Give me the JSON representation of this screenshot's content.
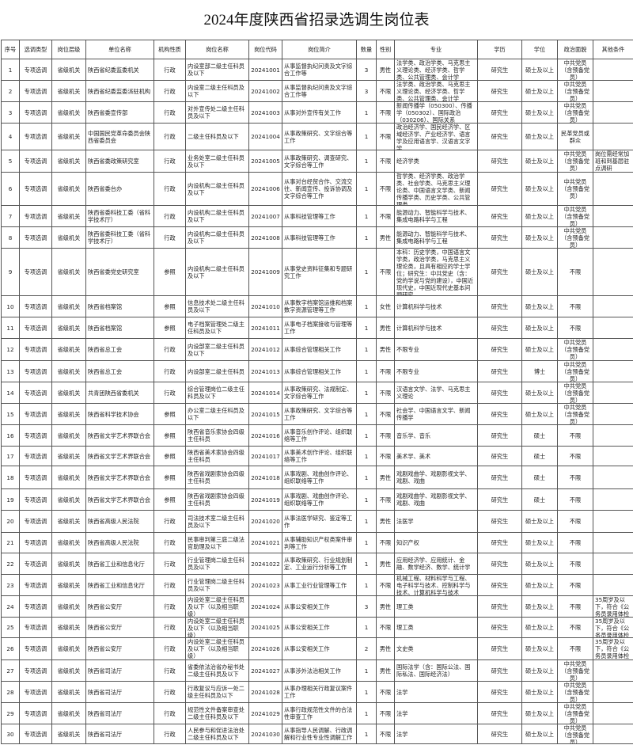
{
  "title": "2024年度陕西省招录选调生岗位表",
  "headers": [
    "序号",
    "选调类型",
    "岗位层级",
    "单位名称",
    "机构性质",
    "岗位名称",
    "岗位代码",
    "岗位简介",
    "数量",
    "性别",
    "专业",
    "学历",
    "学位",
    "政治面貌",
    "其他条件"
  ],
  "rows": [
    [
      "1",
      "专项选调",
      "省级机关",
      "陕西省纪委监委机关",
      "行政",
      "内设室部二级主任科员及以下",
      "20241001",
      "从事监督执纪问责及文字综合工作等",
      "3",
      "男性",
      "法学类、政治学类、马克思主义理论类、经济学类、哲学类、公共管理类、会计学",
      "研究生",
      "硕士及以上",
      "中共党员（含预备党员）",
      ""
    ],
    [
      "2",
      "专项选调",
      "省级机关",
      "陕西省纪委监委派驻机构",
      "行政",
      "内设室二级主任科员及以下",
      "20241002",
      "从事监督执纪问责及文字综合工作等",
      "3",
      "不限",
      "法学类、政治学类、马克思主义理论类、经济学类、哲学类、公共管理类、会计学",
      "研究生",
      "硕士及以上",
      "中共党员（含预备党员）",
      ""
    ],
    [
      "3",
      "专项选调",
      "省级机关",
      "陕西省委宣传部",
      "行政",
      "对外宣传处二级主任科员及以下",
      "20241003",
      "从事对外宣传有关工作",
      "1",
      "不限",
      "新闻传播学（050300）、传播学（050302）、国际政治（030206）、国际关系",
      "研究生",
      "硕士及以上",
      "中共党员（含预备党员）",
      ""
    ],
    [
      "4",
      "专项选调",
      "省级机关",
      "中国国民党革命委员会陕西省委员会",
      "行政",
      "二级主任科员及以下",
      "20241004",
      "从事政策研究、文字综合等工作",
      "1",
      "不限",
      "政治经济学、国民经济学、区域经济学、产业经济学、语言学及应用语言学、汉语言文字学",
      "研究生",
      "硕士及以上",
      "民革党员或群众",
      ""
    ],
    [
      "5",
      "专项选调",
      "省级机关",
      "陕西省委政策研究室",
      "行政",
      "业务处室二级主任科员及以下",
      "20241005",
      "从事政策研究、调查研究、文字综合等工作",
      "1",
      "不限",
      "经济学类",
      "研究生",
      "硕士及以上",
      "中共党员（含预备党员）",
      "岗位需经常加班和到基层驻点调研"
    ],
    [
      "6",
      "专项选调",
      "省级机关",
      "陕西省委台办",
      "行政",
      "内设机构二级主任科员及以下",
      "20241006",
      "从事对台经贸合作、交流交往、新闻宣传、投诉协调及文字综合等工作",
      "1",
      "不限",
      "哲学类、经济学类、政治学类、社会学类、马克思主义理论类、中国语言文学类、新闻传播学类、历史学类、公共管理类",
      "研究生",
      "硕士及以上",
      "中共党员（含预备党员）",
      ""
    ],
    [
      "7",
      "专项选调",
      "省级机关",
      "陕西省委科技工委（省科学技术厅）",
      "行政",
      "内设机构二级主任科员及以下",
      "20241007",
      "从事科技管理等工作",
      "1",
      "不限",
      "能源动力、智能科学与技术、集成电路科学与工程",
      "研究生",
      "硕士及以上",
      "中共党员（含预备党员）",
      ""
    ],
    [
      "8",
      "专项选调",
      "省级机关",
      "陕西省委科技工委（省科学技术厅）",
      "行政",
      "内设机构二级主任科员及以下",
      "20241008",
      "从事科技管理等工作",
      "1",
      "男性",
      "能源动力、智能科学与技术、集成电路科学与工程",
      "研究生",
      "硕士及以上",
      "中共党员（含预备党员）",
      ""
    ],
    [
      "9",
      "专项选调",
      "省级机关",
      "陕西省委党史研究室",
      "参照",
      "内设机构二级主任科员及以下",
      "20241009",
      "从事党史资料征集和专题研究工作",
      "1",
      "不限",
      "本科：历史学类，中国语言文学类，政治学类，马克思主义理论类，且具有相应的学士学位；研究生：中共党史（含：党的学说与党的建设），中国近现代史，中国近现代史基本问题研究",
      "研究生",
      "硕士及以上",
      "不限",
      ""
    ],
    [
      "10",
      "专项选调",
      "省级机关",
      "陕西省档案馆",
      "参照",
      "信息技术处二级主任科员及以下",
      "20241010",
      "从事数字档案馆运维和档案数字资源管理等工作",
      "1",
      "女性",
      "计算机科学与技术",
      "研究生",
      "硕士及以上",
      "不限",
      ""
    ],
    [
      "11",
      "专项选调",
      "省级机关",
      "陕西省档案馆",
      "参照",
      "电子档案管理处二级主任科员及以下",
      "20241011",
      "从事电子档案接收与管理等工作",
      "1",
      "男性",
      "计算机科学与技术",
      "研究生",
      "硕士及以上",
      "不限",
      ""
    ],
    [
      "12",
      "专项选调",
      "省级机关",
      "陕西省总工会",
      "行政",
      "内设部室二级主任科员及以下",
      "20241012",
      "从事综合管理相关工作",
      "1",
      "男性",
      "不限专业",
      "研究生",
      "硕士及以上",
      "中共党员（含预备党员）",
      ""
    ],
    [
      "13",
      "专项选调",
      "省级机关",
      "陕西省总工会",
      "行政",
      "内设部室二级主任科员",
      "20241013",
      "从事综合管理相关工作",
      "1",
      "不限",
      "不限专业",
      "研究生",
      "博士",
      "中共党员（含预备党员）",
      ""
    ],
    [
      "14",
      "专项选调",
      "省级机关",
      "共青团陕西省委机关",
      "行政",
      "综合管理岗位二级主任科员及以下",
      "20241014",
      "从事政策研究、法规制定、文字综合等工作",
      "1",
      "不限",
      "汉语言文学、法学、马克思主义理论",
      "研究生",
      "硕士及以上",
      "中共党员（含预备党员）",
      ""
    ],
    [
      "15",
      "专项选调",
      "省级机关",
      "陕西省科学技术协会",
      "参照",
      "办公室二级主任科员及以下",
      "20241015",
      "从事政策研究、文字综合等工作",
      "1",
      "不限",
      "社会学、中国语言文学、新闻传播学",
      "研究生",
      "硕士及以上",
      "中共党员（含预备党员）",
      ""
    ],
    [
      "16",
      "专项选调",
      "省级机关",
      "陕西省文学艺术界联合会",
      "参照",
      "陕西省音乐家协会四级主任科员",
      "20241016",
      "从事音乐创作评论、组织联络等工作",
      "1",
      "不限",
      "音乐学、音乐",
      "研究生",
      "硕士",
      "不限",
      ""
    ],
    [
      "17",
      "专项选调",
      "省级机关",
      "陕西省文学艺术界联合会",
      "参照",
      "陕西省美术家协会四级主任科员",
      "20241017",
      "从事美术创作评论、组织联络等工作",
      "1",
      "不限",
      "美术学、美术",
      "研究生",
      "硕士",
      "不限",
      ""
    ],
    [
      "18",
      "专项选调",
      "省级机关",
      "陕西省文学艺术界联合会",
      "参照",
      "陕西省戏剧家协会四级主任科员",
      "20241018",
      "从事戏剧、戏曲创作评论、组织联络等工作",
      "1",
      "男性",
      "戏剧戏曲学、戏剧影视文学、戏剧、戏曲",
      "研究生",
      "硕士",
      "不限",
      ""
    ],
    [
      "19",
      "专项选调",
      "省级机关",
      "陕西省文学艺术界联合会",
      "参照",
      "陕西省戏剧家协会四级主任科员",
      "20241019",
      "从事戏剧、戏曲创作评论、组织联络等工作",
      "1",
      "不限",
      "戏剧戏曲学、戏剧影视文学、戏剧、戏曲",
      "研究生",
      "硕士",
      "不限",
      ""
    ],
    [
      "20",
      "专项选调",
      "省级机关",
      "陕西省高级人民法院",
      "行政",
      "司法技术室二级主任科员及以下",
      "20241020",
      "从事法医学研究、鉴定等工作",
      "1",
      "男性",
      "法医学",
      "研究生",
      "硕士及以上",
      "不限",
      ""
    ],
    [
      "21",
      "专项选调",
      "省级机关",
      "陕西省高级人民法院",
      "行政",
      "民事审判第三庭二级法官助理及以下",
      "20241021",
      "从事辅助知识产权类案件审判等工作",
      "1",
      "不限",
      "知识产权",
      "研究生",
      "硕士及以上",
      "不限",
      ""
    ],
    [
      "22",
      "专项选调",
      "省级机关",
      "陕西省工业和信息化厅",
      "行政",
      "行业管理岗二级主任科员及以下",
      "20241022",
      "从事政策研究、行业规划制定、工业运行分析等工作",
      "1",
      "男性",
      "应用经济学、应用统计、金融、数学经济、数学、统计学",
      "研究生",
      "硕士及以上",
      "不限",
      ""
    ],
    [
      "23",
      "专项选调",
      "省级机关",
      "陕西省工业和信息化厅",
      "行政",
      "行业管理岗二级主任科员及以下",
      "20241023",
      "从事工业行业管理等工作",
      "1",
      "不限",
      "机械工程、材料科学与工程、电子科学与技术、控制科学与技术、计算机科学与技术",
      "研究生",
      "硕士及以上",
      "不限",
      ""
    ],
    [
      "24",
      "专项选调",
      "省级机关",
      "陕西省公安厅",
      "行政",
      "内设处室二级主任科员及以下（以及相当职级）",
      "20241024",
      "从事公安相关工作",
      "3",
      "男性",
      "理工类",
      "研究生",
      "硕士及以上",
      "不限",
      "35周岁及以下，符合《公务员录用体检"
    ],
    [
      "25",
      "专项选调",
      "省级机关",
      "陕西省公安厅",
      "行政",
      "内设处室二级主任科员及以下（以及相当职级）",
      "20241025",
      "从事公安相关工作",
      "1",
      "不限",
      "理工类",
      "研究生",
      "硕士及以上",
      "不限",
      "35周岁及以下，符合《公务员录用体检"
    ],
    [
      "26",
      "专项选调",
      "省级机关",
      "陕西省公安厅",
      "行政",
      "内设处室二级主任科员及以下（以及相当职级）",
      "20241026",
      "从事公安相关工作",
      "2",
      "男性",
      "文史类",
      "研究生",
      "硕士及以上",
      "不限",
      "35周岁及以下，符合《公务员录用体检"
    ],
    [
      "27",
      "专项选调",
      "省级机关",
      "陕西省司法厅",
      "行政",
      "省委依法治省办秘书处二级主任科员及以下",
      "20241027",
      "从事涉外法治相关工作",
      "1",
      "男性",
      "国际法学（含：国际公法、国际私法、国际经济法）",
      "研究生",
      "硕士及以上",
      "中共党员（含预备党员）",
      ""
    ],
    [
      "28",
      "专项选调",
      "省级机关",
      "陕西省司法厅",
      "行政",
      "行政复议与应诉一处二级主任科员及以下",
      "20241028",
      "从事办理相关行政复议案件工作",
      "1",
      "不限",
      "法学",
      "研究生",
      "硕士及以上",
      "中共党员（含预备党员）",
      ""
    ],
    [
      "29",
      "专项选调",
      "省级机关",
      "陕西省司法厅",
      "行政",
      "规范性文件备案审查处二级主任科员及以下",
      "20241029",
      "从事行政规范性文件的合法性审查工作",
      "1",
      "不限",
      "法学",
      "研究生",
      "硕士及以上",
      "中共党员（含预备党员）",
      ""
    ],
    [
      "30",
      "专项选调",
      "省级机关",
      "陕西省司法厅",
      "行政",
      "人民参与和促进法治处二级主任科员及以下",
      "20241030",
      "从事指导人民调解、行政调解和行业性专业性调解工作",
      "1",
      "不限",
      "法学",
      "研究生",
      "硕士及以上",
      "中共党员（含预备党员）",
      ""
    ]
  ]
}
